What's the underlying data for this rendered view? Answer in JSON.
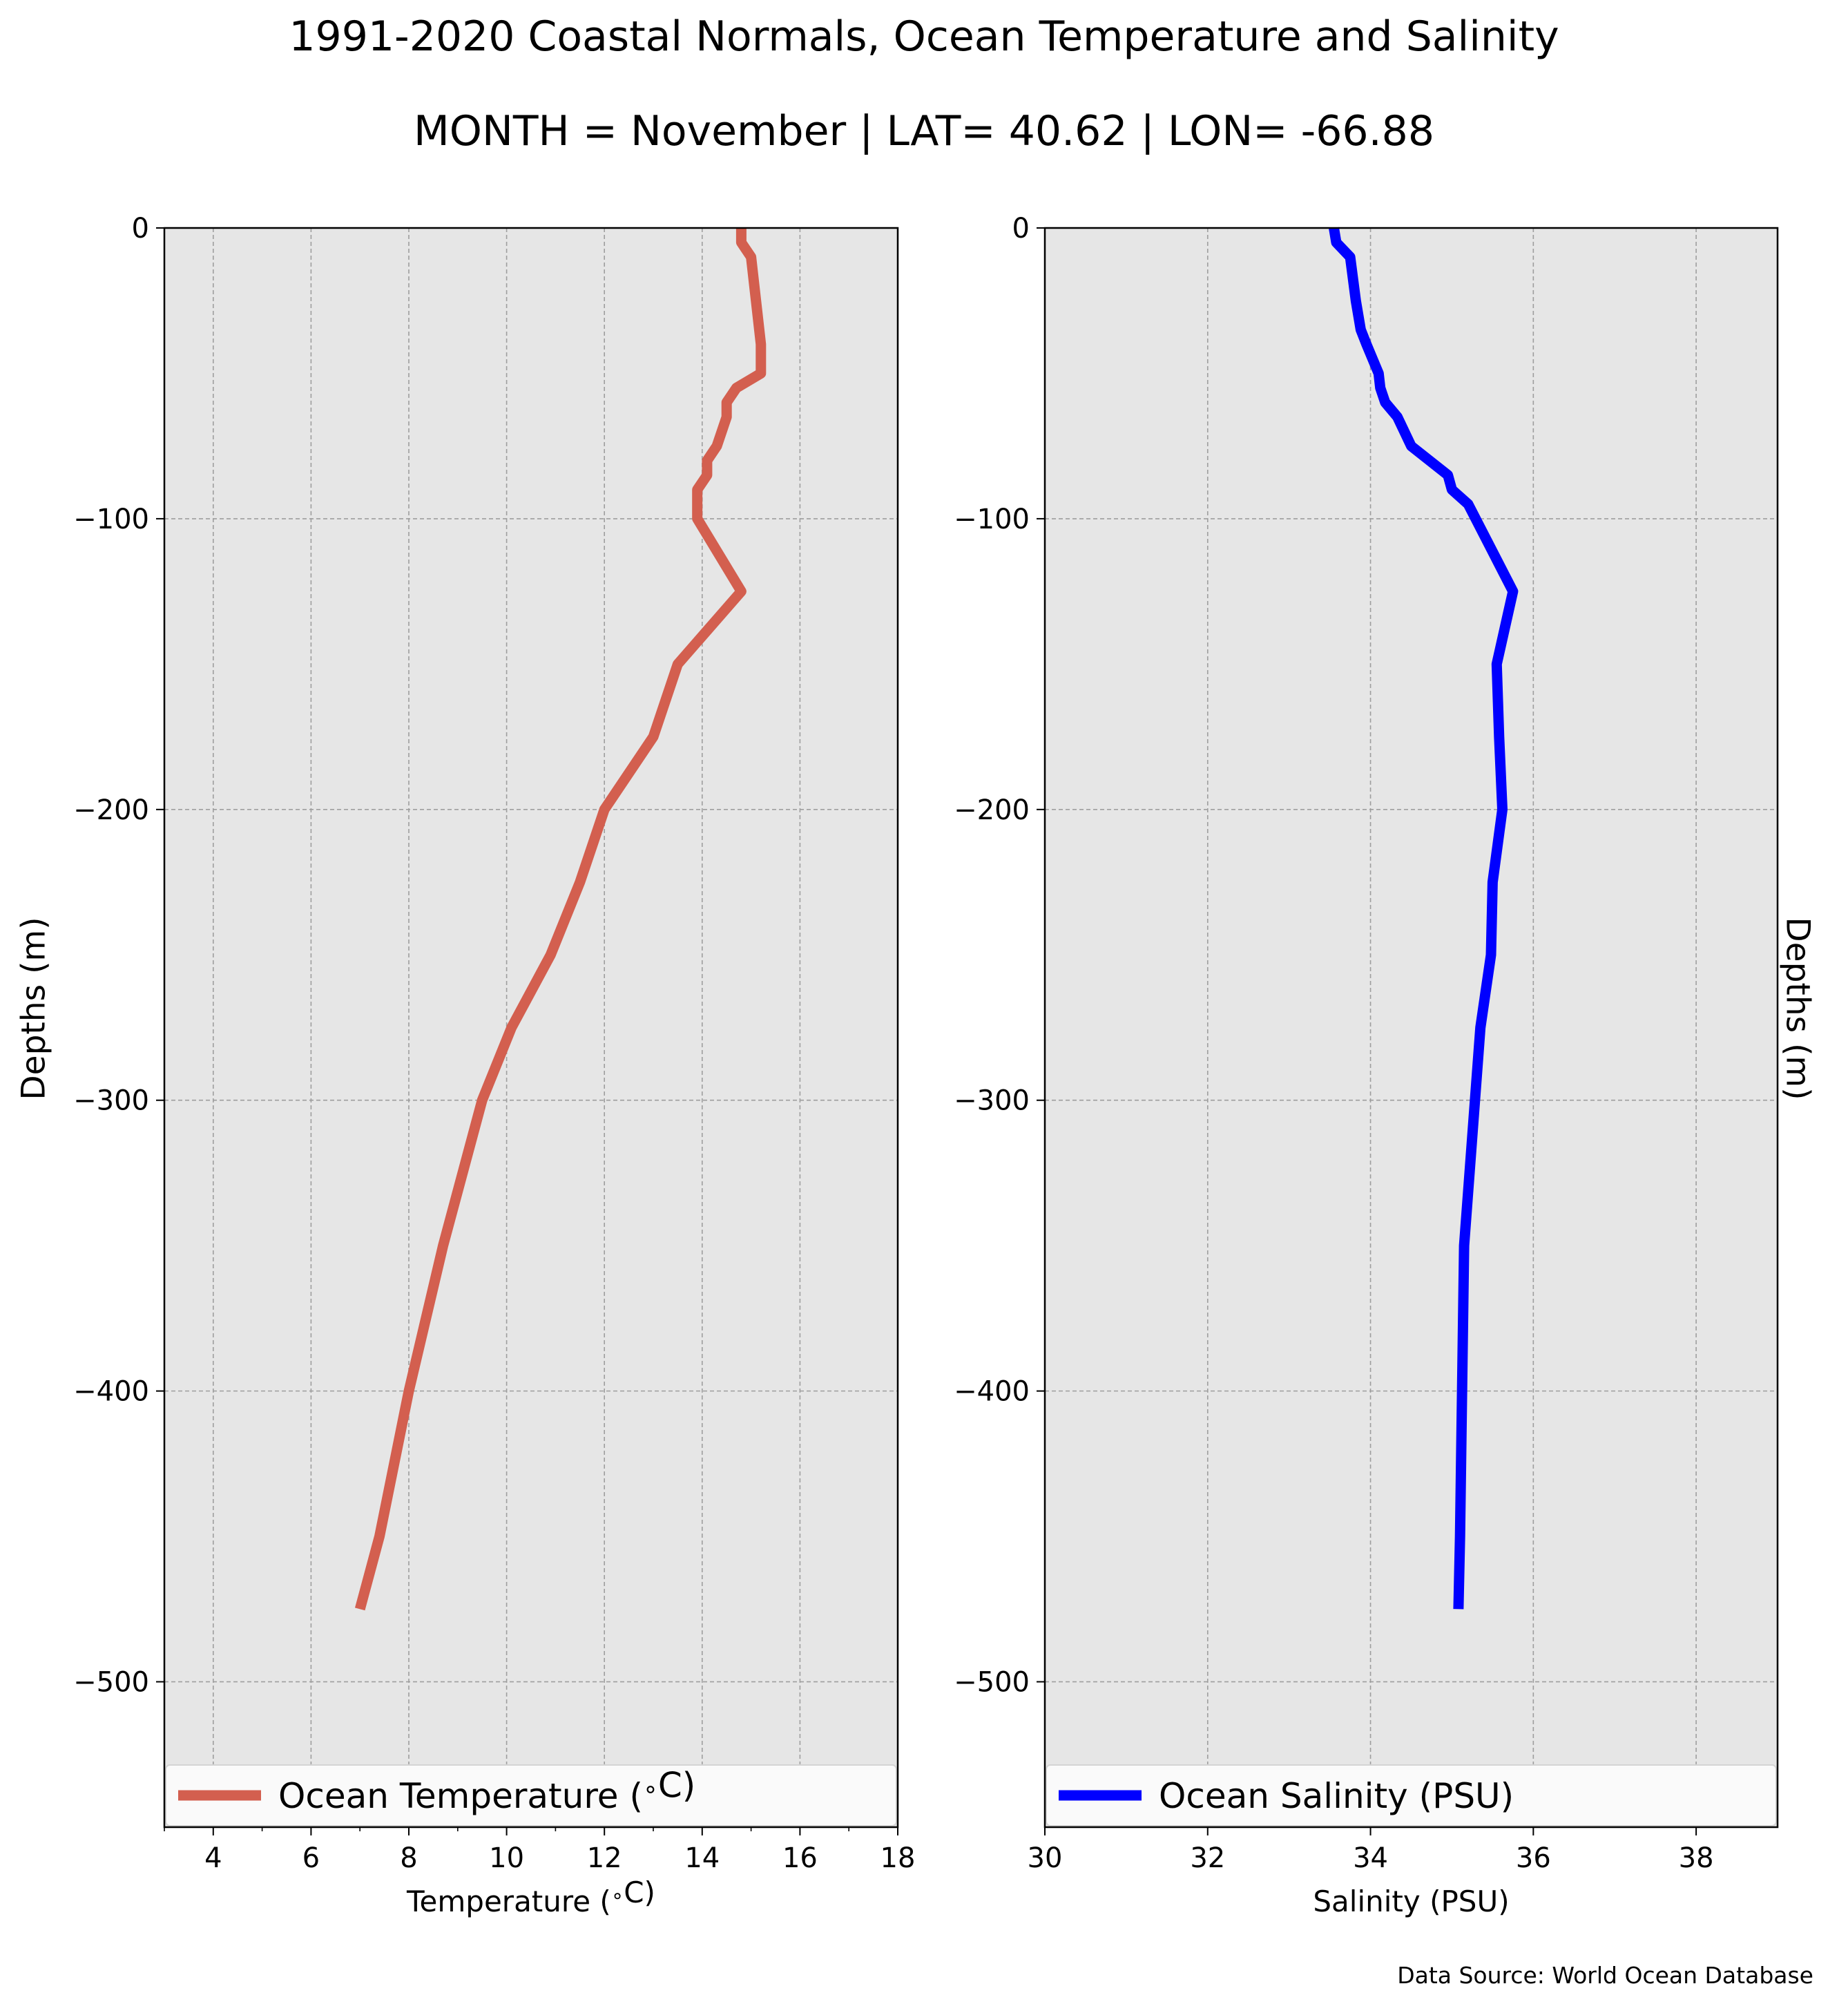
{
  "figure": {
    "title": "1991-2020 Coastal Normals, Ocean Temperature and Salinity",
    "subtitle": "MONTH = November | LAT= 40.62 | LON= -66.88",
    "source_note": "Data Source: World Ocean Database"
  },
  "colors": {
    "temperature_line": "#d35f4f",
    "salinity_line": "#0000ff",
    "plot_background": "#e6e6e6",
    "grid": "#9e9e9e"
  },
  "chart_data": [
    {
      "type": "line",
      "orientation": "vertical-profile",
      "xlabel": "Temperature ($^\\circ$C)",
      "ylabel": "Depths (m)",
      "xlim": [
        3,
        18
      ],
      "ylim": [
        -550,
        0
      ],
      "xticks": [
        4,
        6,
        8,
        10,
        12,
        14,
        16,
        18
      ],
      "xticks_minor": [
        3,
        5,
        7,
        9,
        11,
        13,
        15,
        17
      ],
      "yticks": [
        0,
        -100,
        -200,
        -300,
        -400,
        -500
      ],
      "ytick_labels": [
        "0",
        "−100",
        "−200",
        "−300",
        "−400",
        "−500"
      ],
      "grid": true,
      "legend_position": "bottom",
      "series": [
        {
          "name": "Ocean Temperature ($^\\circ$C)",
          "x": [
            14.8,
            14.8,
            15.0,
            15.1,
            15.2,
            15.2,
            15.2,
            14.7,
            14.5,
            14.5,
            14.3,
            14.1,
            14.1,
            13.9,
            13.9,
            13.9,
            14.8,
            13.5,
            13.0,
            12.0,
            11.5,
            10.9,
            10.1,
            9.5,
            8.7,
            8.0,
            7.4,
            7.0
          ],
          "y": [
            0,
            -5,
            -10,
            -25,
            -40,
            -45,
            -50,
            -55,
            -60,
            -65,
            -75,
            -80,
            -85,
            -90,
            -95,
            -100,
            -125,
            -150,
            -175,
            -200,
            -225,
            -250,
            -275,
            -300,
            -350,
            -400,
            -450,
            -475
          ]
        }
      ]
    },
    {
      "type": "line",
      "orientation": "vertical-profile",
      "xlabel": "Salinity (PSU)",
      "ylabel": "Depths (m)",
      "xlim": [
        30,
        39
      ],
      "ylim": [
        -550,
        0
      ],
      "xticks": [
        30,
        32,
        34,
        36,
        38
      ],
      "yticks": [
        0,
        -100,
        -200,
        -300,
        -400,
        -500
      ],
      "ytick_labels": [
        "0",
        "−100",
        "−200",
        "−300",
        "−400",
        "−500"
      ],
      "grid": true,
      "legend_position": "bottom",
      "series": [
        {
          "name": "Ocean Salinity (PSU)",
          "x": [
            33.55,
            33.58,
            33.75,
            33.82,
            33.88,
            33.95,
            34.1,
            34.12,
            34.18,
            34.33,
            34.5,
            34.95,
            35.0,
            35.2,
            35.75,
            35.55,
            35.58,
            35.62,
            35.5,
            35.48,
            35.35,
            35.15,
            35.1,
            35.08
          ],
          "y": [
            0,
            -5,
            -10,
            -25,
            -35,
            -40,
            -50,
            -55,
            -60,
            -65,
            -75,
            -85,
            -90,
            -95,
            -125,
            -150,
            -175,
            -200,
            -225,
            -250,
            -275,
            -350,
            -450,
            -475
          ]
        }
      ]
    }
  ]
}
